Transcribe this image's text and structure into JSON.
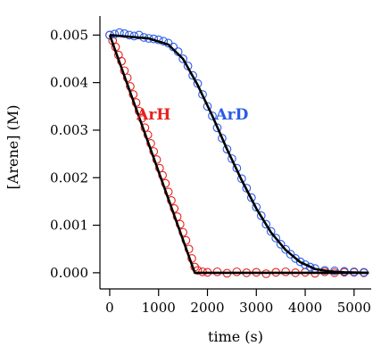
{
  "chart_data": {
    "type": "scatter",
    "title": "",
    "xlabel": "time (s)",
    "ylabel": "[Arene] (M)",
    "xlim": [
      -200,
      5350
    ],
    "ylim": [
      -0.00034,
      0.0054
    ],
    "xticks": [
      0,
      1000,
      2000,
      3000,
      4000,
      5000
    ],
    "xtick_labels": [
      "0",
      "1000",
      "2000",
      "3000",
      "4000",
      "5000"
    ],
    "yticks": [
      0.0,
      0.001,
      0.002,
      0.003,
      0.004,
      0.005
    ],
    "ytick_labels": [
      "0.000",
      "0.001",
      "0.002",
      "0.003",
      "0.004",
      "0.005"
    ],
    "grid": false,
    "legend": "none",
    "marker": "open-circle",
    "series": [
      {
        "name": "ArH",
        "color": "#e8201c",
        "points": [
          [
            0,
            0.005
          ],
          [
            60,
            0.00488
          ],
          [
            120,
            0.00475
          ],
          [
            180,
            0.00458
          ],
          [
            240,
            0.00445
          ],
          [
            300,
            0.00425
          ],
          [
            360,
            0.0041
          ],
          [
            420,
            0.00392
          ],
          [
            480,
            0.00375
          ],
          [
            540,
            0.00358
          ],
          [
            600,
            0.0034
          ],
          [
            660,
            0.00325
          ],
          [
            720,
            0.00305
          ],
          [
            780,
            0.0029
          ],
          [
            840,
            0.00272
          ],
          [
            900,
            0.00255
          ],
          [
            960,
            0.00238
          ],
          [
            1020,
            0.0022
          ],
          [
            1080,
            0.00205
          ],
          [
            1140,
            0.00188
          ],
          [
            1200,
            0.0017
          ],
          [
            1260,
            0.00152
          ],
          [
            1320,
            0.00135
          ],
          [
            1380,
            0.00118
          ],
          [
            1440,
            0.00102
          ],
          [
            1500,
            0.00085
          ],
          [
            1560,
            0.00068
          ],
          [
            1620,
            0.0005
          ],
          [
            1680,
            0.0003
          ],
          [
            1740,
            0.00012
          ],
          [
            1800,
            5e-05
          ],
          [
            1900,
            2e-05
          ],
          [
            2000,
            1e-05
          ],
          [
            2200,
            2e-05
          ],
          [
            2400,
            -1e-05
          ],
          [
            2600,
            2e-05
          ],
          [
            2800,
            0.0
          ],
          [
            3000,
            1e-05
          ],
          [
            3200,
            -2e-05
          ],
          [
            3400,
            1e-05
          ],
          [
            3600,
            2e-05
          ],
          [
            3800,
            0.0
          ],
          [
            4000,
            1e-05
          ],
          [
            4200,
            -1e-05
          ],
          [
            4400,
            2e-05
          ],
          [
            4600,
            0.0
          ],
          [
            4800,
            1e-05
          ],
          [
            5000,
            1e-05
          ],
          [
            5200,
            0.0
          ]
        ]
      },
      {
        "name": "ArD",
        "color": "#2a5ce8",
        "points": [
          [
            0,
            0.005
          ],
          [
            100,
            0.00502
          ],
          [
            200,
            0.00505
          ],
          [
            300,
            0.00503
          ],
          [
            400,
            0.005
          ],
          [
            500,
            0.00498
          ],
          [
            600,
            0.005
          ],
          [
            700,
            0.00495
          ],
          [
            800,
            0.00493
          ],
          [
            900,
            0.00492
          ],
          [
            1000,
            0.0049
          ],
          [
            1100,
            0.00487
          ],
          [
            1200,
            0.00483
          ],
          [
            1300,
            0.00475
          ],
          [
            1400,
            0.00465
          ],
          [
            1500,
            0.0045
          ],
          [
            1600,
            0.00435
          ],
          [
            1700,
            0.00415
          ],
          [
            1800,
            0.00398
          ],
          [
            1900,
            0.00375
          ],
          [
            2000,
            0.0035
          ],
          [
            2100,
            0.0033
          ],
          [
            2200,
            0.00305
          ],
          [
            2300,
            0.00283
          ],
          [
            2400,
            0.0026
          ],
          [
            2500,
            0.0024
          ],
          [
            2600,
            0.0022
          ],
          [
            2700,
            0.00198
          ],
          [
            2800,
            0.00178
          ],
          [
            2900,
            0.00158
          ],
          [
            3000,
            0.00138
          ],
          [
            3100,
            0.0012
          ],
          [
            3200,
            0.00102
          ],
          [
            3300,
            0.00087
          ],
          [
            3400,
            0.00073
          ],
          [
            3500,
            0.0006
          ],
          [
            3600,
            0.00049
          ],
          [
            3700,
            0.00039
          ],
          [
            3800,
            0.0003
          ],
          [
            3900,
            0.00023
          ],
          [
            4000,
            0.00017
          ],
          [
            4100,
            0.00012
          ],
          [
            4200,
            9e-05
          ],
          [
            4400,
            5e-05
          ],
          [
            4600,
            4e-05
          ],
          [
            4800,
            3e-05
          ],
          [
            5000,
            2e-05
          ],
          [
            5200,
            1e-05
          ]
        ]
      }
    ],
    "fit_curves": [
      {
        "color": "#000000",
        "points": [
          [
            0,
            0.005
          ],
          [
            1740,
            0.0
          ],
          [
            5300,
            0.0
          ]
        ]
      },
      {
        "color": "#000000",
        "points": [
          [
            0,
            0.005
          ],
          [
            800,
            0.00493
          ],
          [
            1200,
            0.0048
          ],
          [
            1500,
            0.0045
          ],
          [
            1800,
            0.00395
          ],
          [
            2100,
            0.0033
          ],
          [
            2400,
            0.0026
          ],
          [
            2700,
            0.00195
          ],
          [
            3000,
            0.00135
          ],
          [
            3300,
            0.00085
          ],
          [
            3600,
            0.00048
          ],
          [
            3900,
            0.00022
          ],
          [
            4200,
            8e-05
          ],
          [
            4500,
            3e-05
          ],
          [
            4800,
            1e-05
          ],
          [
            5300,
            0.0
          ]
        ]
      }
    ],
    "annotations": [
      {
        "text": "ArH",
        "x": 900,
        "y": 0.00334,
        "color": "#e8201c"
      },
      {
        "text": "ArD",
        "x": 2500,
        "y": 0.00334,
        "color": "#2a5ce8"
      }
    ]
  }
}
